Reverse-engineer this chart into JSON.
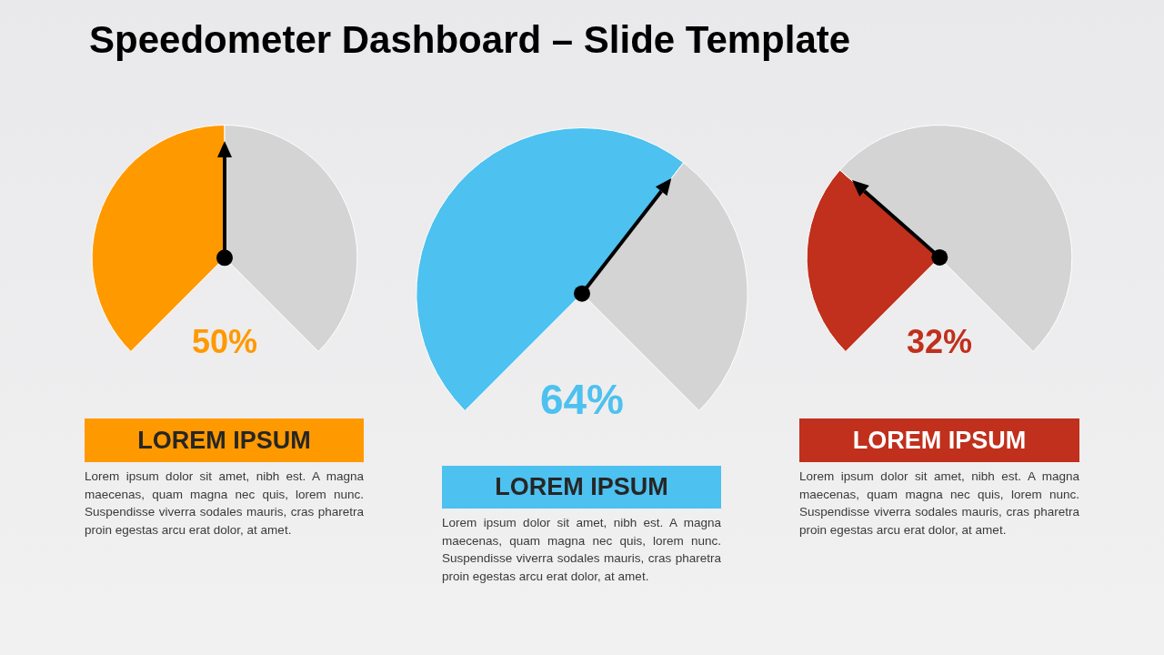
{
  "chart_data": [
    {
      "type": "other",
      "title": "Speedometer Dashboard – Slide Template"
    },
    {
      "type": "pie",
      "title": "LOREM IPSUM",
      "categories": [
        null,
        null
      ],
      "values": [
        50,
        50
      ],
      "colors": [
        "#ff9900",
        "#d4d4d4"
      ],
      "annotations": [
        "50%",
        "Lorem ipsum dolor sit amet, nibh est. A magna maecenas, quam magna nec quis, lorem nunc. Suspendisse viverra sodales mauris, cras pharetra proin egestas arcu erat dolor, at amet."
      ]
    },
    {
      "type": "pie",
      "title": "LOREM IPSUM",
      "categories": [
        null,
        null
      ],
      "values": [
        64,
        36
      ],
      "colors": [
        "#4dc1ef",
        "#d4d4d4"
      ],
      "annotations": [
        "64%",
        "Lorem ipsum dolor sit amet, nibh est. A magna maecenas, quam magna nec quis, lorem nunc. Suspendisse viverra sodales mauris, cras pharetra proin egestas arcu erat dolor, at amet."
      ]
    },
    {
      "type": "pie",
      "title": "LOREM IPSUM",
      "categories": [
        null,
        null
      ],
      "values": [
        32,
        68
      ],
      "colors": [
        "#c0301c",
        "#d4d4d4"
      ],
      "annotations": [
        "32%",
        "Lorem ipsum dolor sit amet, nibh est. A magna maecenas, quam magna nec quis, lorem nunc. Suspendisse viverra sodales mauris, cras pharetra proin egestas arcu erat dolor, at amet."
      ]
    }
  ]
}
